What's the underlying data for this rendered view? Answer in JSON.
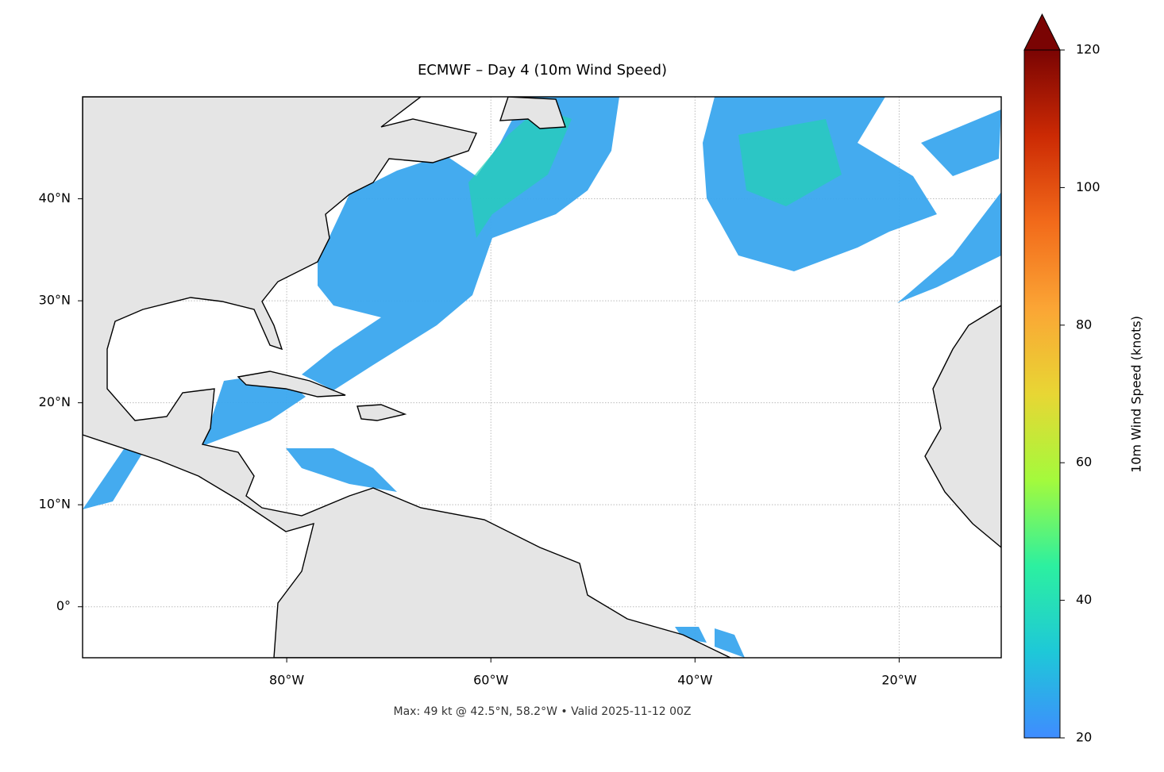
{
  "map": {
    "title": "ECMWF – Day 4 (10m Wind Speed)",
    "subtitle": "Max: 49 kt @ 42.5°N, 58.2°W • Valid 2025-11-12 00Z",
    "xlim": [
      -100,
      -10
    ],
    "ylim": [
      -5,
      50
    ],
    "xticks": [
      {
        "value": -80,
        "label": "80°W"
      },
      {
        "value": -60,
        "label": "60°W"
      },
      {
        "value": -40,
        "label": "40°W"
      },
      {
        "value": -20,
        "label": "20°W"
      }
    ],
    "yticks": [
      {
        "value": 0,
        "label": "0°"
      },
      {
        "value": 10,
        "label": "10°N"
      },
      {
        "value": 20,
        "label": "20°N"
      },
      {
        "value": 30,
        "label": "30°N"
      },
      {
        "value": 40,
        "label": "40°N"
      }
    ],
    "grid": true,
    "colorbar": {
      "label": "10m Wind Speed (knots)",
      "lim": [
        20,
        120
      ],
      "ticks": [
        20,
        40,
        60,
        80,
        100,
        120
      ],
      "colors": [
        "#3f8cff",
        "#1ec8d8",
        "#2cf0a0",
        "#a4fa3c",
        "#e8d634",
        "#fba535",
        "#f26a1a",
        "#cc2a04",
        "#7a0403"
      ]
    }
  }
}
